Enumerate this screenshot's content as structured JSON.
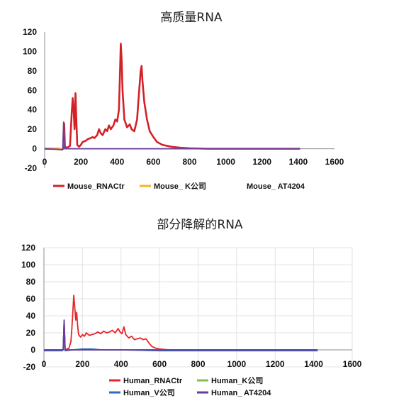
{
  "chart_data": [
    {
      "type": "line",
      "title": "高质量RNA",
      "xlabel": "",
      "ylabel": "",
      "xlim": [
        0,
        1600
      ],
      "ylim": [
        -20,
        120
      ],
      "x_ticks": [
        0,
        200,
        400,
        600,
        800,
        1000,
        1200,
        1400,
        1600
      ],
      "y_ticks": [
        120,
        100,
        80,
        60,
        40,
        20,
        0,
        -20
      ],
      "grid": false,
      "legend_position": "bottom",
      "series": [
        {
          "name": "Mouse_RNACtr",
          "color": "#d42127",
          "points": [
            [
              0,
              0
            ],
            [
              80,
              0
            ],
            [
              95,
              -1
            ],
            [
              102,
              0
            ],
            [
              108,
              26
            ],
            [
              112,
              2
            ],
            [
              125,
              1
            ],
            [
              140,
              3
            ],
            [
              150,
              38
            ],
            [
              155,
              52
            ],
            [
              160,
              40
            ],
            [
              165,
              20
            ],
            [
              170,
              57
            ],
            [
              175,
              30
            ],
            [
              180,
              4
            ],
            [
              190,
              2
            ],
            [
              200,
              4
            ],
            [
              210,
              7
            ],
            [
              225,
              8
            ],
            [
              240,
              10
            ],
            [
              255,
              11
            ],
            [
              265,
              12
            ],
            [
              275,
              11
            ],
            [
              290,
              14
            ],
            [
              300,
              20
            ],
            [
              310,
              16
            ],
            [
              320,
              14
            ],
            [
              335,
              20
            ],
            [
              345,
              18
            ],
            [
              355,
              24
            ],
            [
              365,
              20
            ],
            [
              380,
              24
            ],
            [
              390,
              30
            ],
            [
              400,
              28
            ],
            [
              410,
              40
            ],
            [
              415,
              72
            ],
            [
              420,
              108
            ],
            [
              425,
              92
            ],
            [
              430,
              60
            ],
            [
              440,
              30
            ],
            [
              455,
              22
            ],
            [
              470,
              25
            ],
            [
              480,
              20
            ],
            [
              495,
              18
            ],
            [
              510,
              30
            ],
            [
              520,
              55
            ],
            [
              530,
              80
            ],
            [
              535,
              85
            ],
            [
              540,
              70
            ],
            [
              550,
              48
            ],
            [
              565,
              30
            ],
            [
              580,
              18
            ],
            [
              600,
              12
            ],
            [
              620,
              7
            ],
            [
              650,
              4
            ],
            [
              700,
              2
            ],
            [
              750,
              1
            ],
            [
              800,
              0.5
            ],
            [
              900,
              0
            ],
            [
              1000,
              0
            ],
            [
              1100,
              0
            ],
            [
              1200,
              0
            ],
            [
              1300,
              0
            ],
            [
              1410,
              0
            ]
          ]
        },
        {
          "name": "Mouse_ K公司",
          "color": "#f5b325",
          "points": [
            [
              0,
              0
            ],
            [
              95,
              0
            ],
            [
              100,
              0
            ],
            [
              105,
              28
            ],
            [
              110,
              0
            ],
            [
              200,
              0
            ],
            [
              400,
              0
            ],
            [
              600,
              0
            ],
            [
              800,
              0
            ],
            [
              1000,
              0
            ],
            [
              1200,
              0
            ],
            [
              1410,
              0
            ]
          ]
        },
        {
          "name": "Mouse_ AT4204",
          "color": "#6a3aa0",
          "points": [
            [
              0,
              0
            ],
            [
              95,
              -1
            ],
            [
              100,
              0
            ],
            [
              105,
              27
            ],
            [
              110,
              0
            ],
            [
              150,
              0
            ],
            [
              300,
              0
            ],
            [
              500,
              0
            ],
            [
              700,
              0
            ],
            [
              900,
              0
            ],
            [
              1100,
              0
            ],
            [
              1300,
              0
            ],
            [
              1410,
              0
            ]
          ]
        }
      ]
    },
    {
      "type": "line",
      "title": "部分降解的RNA",
      "xlabel": "",
      "ylabel": "",
      "xlim": [
        0,
        1600
      ],
      "ylim": [
        -20,
        120
      ],
      "x_ticks": [
        0,
        200,
        400,
        600,
        800,
        1000,
        1200,
        1400,
        1600
      ],
      "y_ticks": [
        120,
        100,
        80,
        60,
        40,
        20,
        0,
        -20
      ],
      "grid": true,
      "legend_position": "bottom",
      "series": [
        {
          "name": "Human_RNACtr",
          "color": "#e5262b",
          "points": [
            [
              0,
              0
            ],
            [
              90,
              0
            ],
            [
              100,
              0
            ],
            [
              105,
              30
            ],
            [
              110,
              0
            ],
            [
              130,
              2
            ],
            [
              140,
              10
            ],
            [
              145,
              25
            ],
            [
              150,
              45
            ],
            [
              155,
              64
            ],
            [
              160,
              50
            ],
            [
              165,
              35
            ],
            [
              170,
              44
            ],
            [
              175,
              28
            ],
            [
              180,
              18
            ],
            [
              190,
              15
            ],
            [
              200,
              18
            ],
            [
              210,
              16
            ],
            [
              220,
              20
            ],
            [
              235,
              17
            ],
            [
              250,
              18
            ],
            [
              265,
              19
            ],
            [
              280,
              21
            ],
            [
              295,
              19
            ],
            [
              310,
              22
            ],
            [
              325,
              20
            ],
            [
              340,
              21
            ],
            [
              355,
              23
            ],
            [
              370,
              20
            ],
            [
              385,
              25
            ],
            [
              395,
              21
            ],
            [
              405,
              19
            ],
            [
              415,
              27
            ],
            [
              425,
              18
            ],
            [
              440,
              14
            ],
            [
              455,
              16
            ],
            [
              470,
              12
            ],
            [
              485,
              13
            ],
            [
              500,
              14
            ],
            [
              515,
              12
            ],
            [
              530,
              13
            ],
            [
              545,
              8
            ],
            [
              560,
              4
            ],
            [
              580,
              2
            ],
            [
              600,
              1
            ],
            [
              650,
              0
            ],
            [
              700,
              0
            ],
            [
              800,
              0
            ],
            [
              1000,
              0
            ],
            [
              1200,
              0
            ],
            [
              1420,
              0
            ]
          ]
        },
        {
          "name": "Human_K公司",
          "color": "#7cc24e",
          "points": [
            [
              0,
              0
            ],
            [
              95,
              0
            ],
            [
              100,
              0
            ],
            [
              105,
              33
            ],
            [
              110,
              0
            ],
            [
              200,
              0
            ],
            [
              400,
              0
            ],
            [
              600,
              0
            ],
            [
              800,
              0
            ],
            [
              1000,
              0
            ],
            [
              1200,
              0
            ],
            [
              1420,
              0
            ]
          ]
        },
        {
          "name": "Human_V公司",
          "color": "#2f6db5",
          "points": [
            [
              0,
              -1
            ],
            [
              95,
              -1
            ],
            [
              100,
              0
            ],
            [
              105,
              34
            ],
            [
              110,
              -1
            ],
            [
              150,
              0
            ],
            [
              200,
              1
            ],
            [
              250,
              1
            ],
            [
              300,
              0
            ],
            [
              400,
              0
            ],
            [
              600,
              -1
            ],
            [
              800,
              -1
            ],
            [
              1000,
              -1
            ],
            [
              1200,
              -1
            ],
            [
              1420,
              -1
            ]
          ]
        },
        {
          "name": "Human_ AT4204",
          "color": "#6a3aa0",
          "points": [
            [
              0,
              0
            ],
            [
              95,
              0
            ],
            [
              100,
              0
            ],
            [
              105,
              35
            ],
            [
              110,
              0
            ],
            [
              200,
              0
            ],
            [
              400,
              0
            ],
            [
              600,
              0
            ],
            [
              800,
              0
            ],
            [
              1000,
              0
            ],
            [
              1200,
              0
            ],
            [
              1420,
              0
            ]
          ]
        }
      ]
    }
  ]
}
